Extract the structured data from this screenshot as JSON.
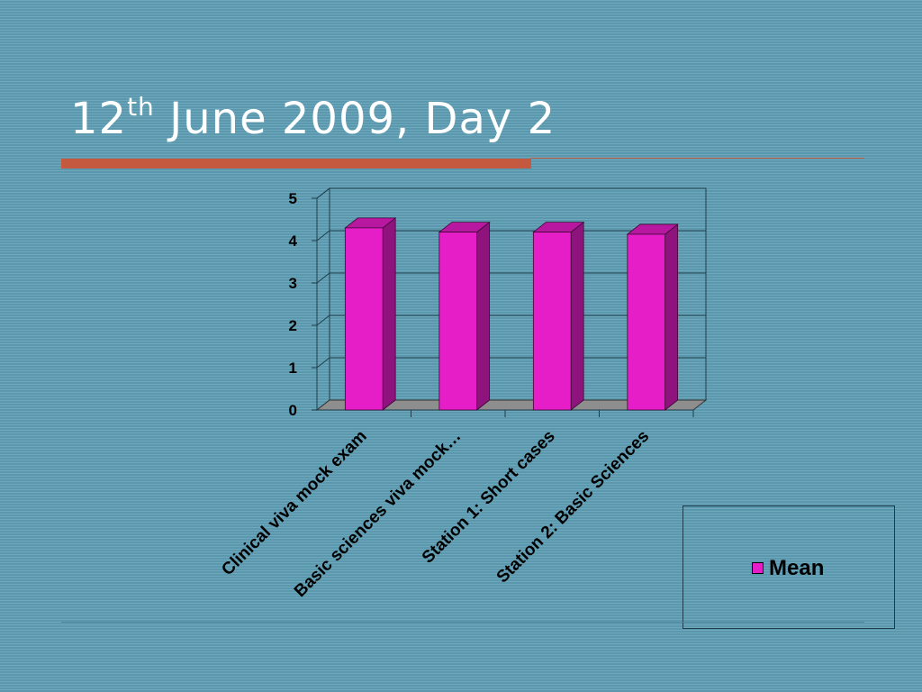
{
  "slide": {
    "title_main": "12",
    "title_sup": "th",
    "title_rest": " June 2009, Day 2",
    "accent_color": "#c4593f"
  },
  "chart_data": {
    "type": "bar",
    "categories": [
      "Clinical viva mock exam",
      "Basic sciences viva mock…",
      "Station 1: Short cases",
      "Station 2: Basic Sciences"
    ],
    "series": [
      {
        "name": "Mean",
        "values": [
          4.3,
          4.2,
          4.2,
          4.15
        ],
        "color": "#e61ec8"
      }
    ],
    "yticks": [
      "0",
      "1",
      "2",
      "3",
      "4",
      "5"
    ],
    "ylim": [
      0,
      5
    ],
    "grid": true,
    "three_d": true,
    "legend_position": "bottom-right"
  }
}
